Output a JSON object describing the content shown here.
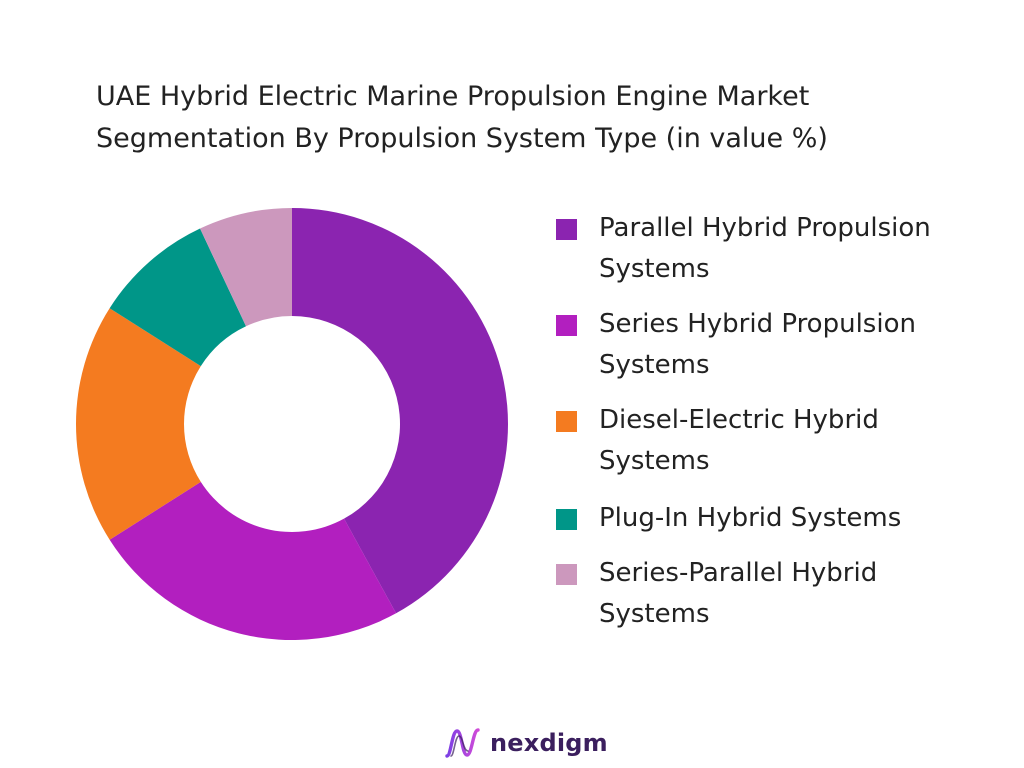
{
  "header": {
    "title_line1": "UAE Hybrid Electric Marine Propulsion Engine Market",
    "title_line2": "Segmentation By Propulsion System Type (in value %)"
  },
  "chart_data": {
    "type": "pie",
    "donut": true,
    "title": "UAE Hybrid Electric Marine Propulsion Engine Market Segmentation By Propulsion System Type (in value %)",
    "legend_position": "right",
    "series": [
      {
        "name": "Parallel Hybrid Propulsion Systems",
        "value": 42,
        "color": "#8b24b0",
        "label_lines": [
          "Parallel Hybrid Propulsion",
          "Systems"
        ]
      },
      {
        "name": "Series Hybrid Propulsion Systems",
        "value": 24,
        "color": "#b21fbf",
        "label_lines": [
          "Series Hybrid Propulsion",
          "Systems"
        ]
      },
      {
        "name": "Diesel-Electric Hybrid Systems",
        "value": 18,
        "color": "#f47b20",
        "label_lines": [
          "Diesel-Electric Hybrid",
          "Systems"
        ]
      },
      {
        "name": "Plug-In Hybrid Systems",
        "value": 9,
        "color": "#009688",
        "label_lines": [
          "Plug-In Hybrid Systems"
        ]
      },
      {
        "name": "Series-Parallel Hybrid Systems",
        "value": 7,
        "color": "#cc98bd",
        "label_lines": [
          "Series-Parallel Hybrid",
          "Systems"
        ]
      }
    ]
  },
  "brand": {
    "name": "nexdigm",
    "logo_icon": "nexdigm-wave-logo-icon",
    "color": "#3b1f5e"
  }
}
